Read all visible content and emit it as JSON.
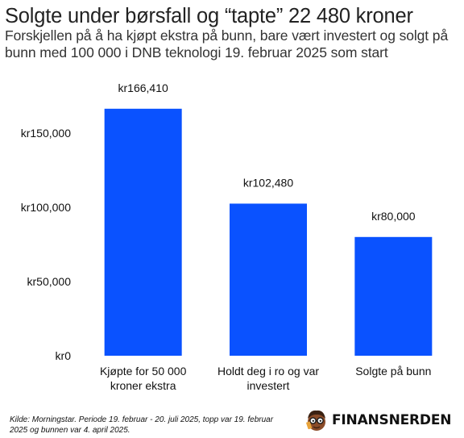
{
  "header": {
    "title": "Solgte under børsfall og “tapte” 22 480 kroner",
    "subtitle": "Forskjellen på å ha kjøpt ekstra på bunn, bare vært investert og solgt på bunn med 100 000 i DNB teknologi 19. februar 2025 som start"
  },
  "footer": {
    "source": "Kilde: Morningstar. Periode 19. februar - 20. juli 2025, topp var 19. februar 2025 og bunnen var 4. april 2025.",
    "brand": "FINANSNERDEN",
    "brand_icon": "mascot-logo-icon"
  },
  "chart_data": {
    "type": "bar",
    "title": "Solgte under børsfall og “tapte” 22 480 kroner",
    "subtitle": "Forskjellen på å ha kjøpt ekstra på bunn, bare vært investert og solgt på bunn med 100 000 i DNB teknologi 19. februar 2025 som start",
    "categories": [
      [
        "Kjøpte for 50 000",
        "kroner ekstra"
      ],
      [
        "Holdt deg i ro og var",
        "investert"
      ],
      [
        "Solgte på bunn"
      ]
    ],
    "values": [
      166410,
      102480,
      80000
    ],
    "data_labels": [
      "kr166,410",
      "kr102,480",
      "kr80,000"
    ],
    "xlabel": "",
    "ylabel": "",
    "ylim": [
      0,
      170000
    ],
    "yticks": [
      0,
      50000,
      100000,
      150000
    ],
    "ytick_labels": [
      "kr0",
      "kr50,000",
      "kr100,000",
      "kr150,000"
    ],
    "grid": false,
    "legend": "none",
    "bar_color": "#0a52ff"
  }
}
